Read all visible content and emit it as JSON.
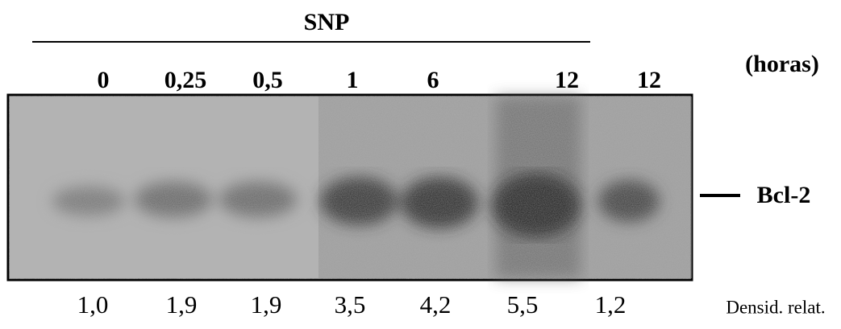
{
  "header": {
    "title": "SNP",
    "unit": "(horas)"
  },
  "lanes": [
    {
      "label": "0",
      "density": "1,0"
    },
    {
      "label": "0,25",
      "density": "1,9"
    },
    {
      "label": "0,5",
      "density": "1,9"
    },
    {
      "label": "1",
      "density": "3,5"
    },
    {
      "label": "6",
      "density": "4,2"
    },
    {
      "label": "12",
      "density": "5,5"
    },
    {
      "label": "12",
      "density": "1,2"
    }
  ],
  "band_label": "Bcl-2",
  "density_label": "Densid. relat."
}
